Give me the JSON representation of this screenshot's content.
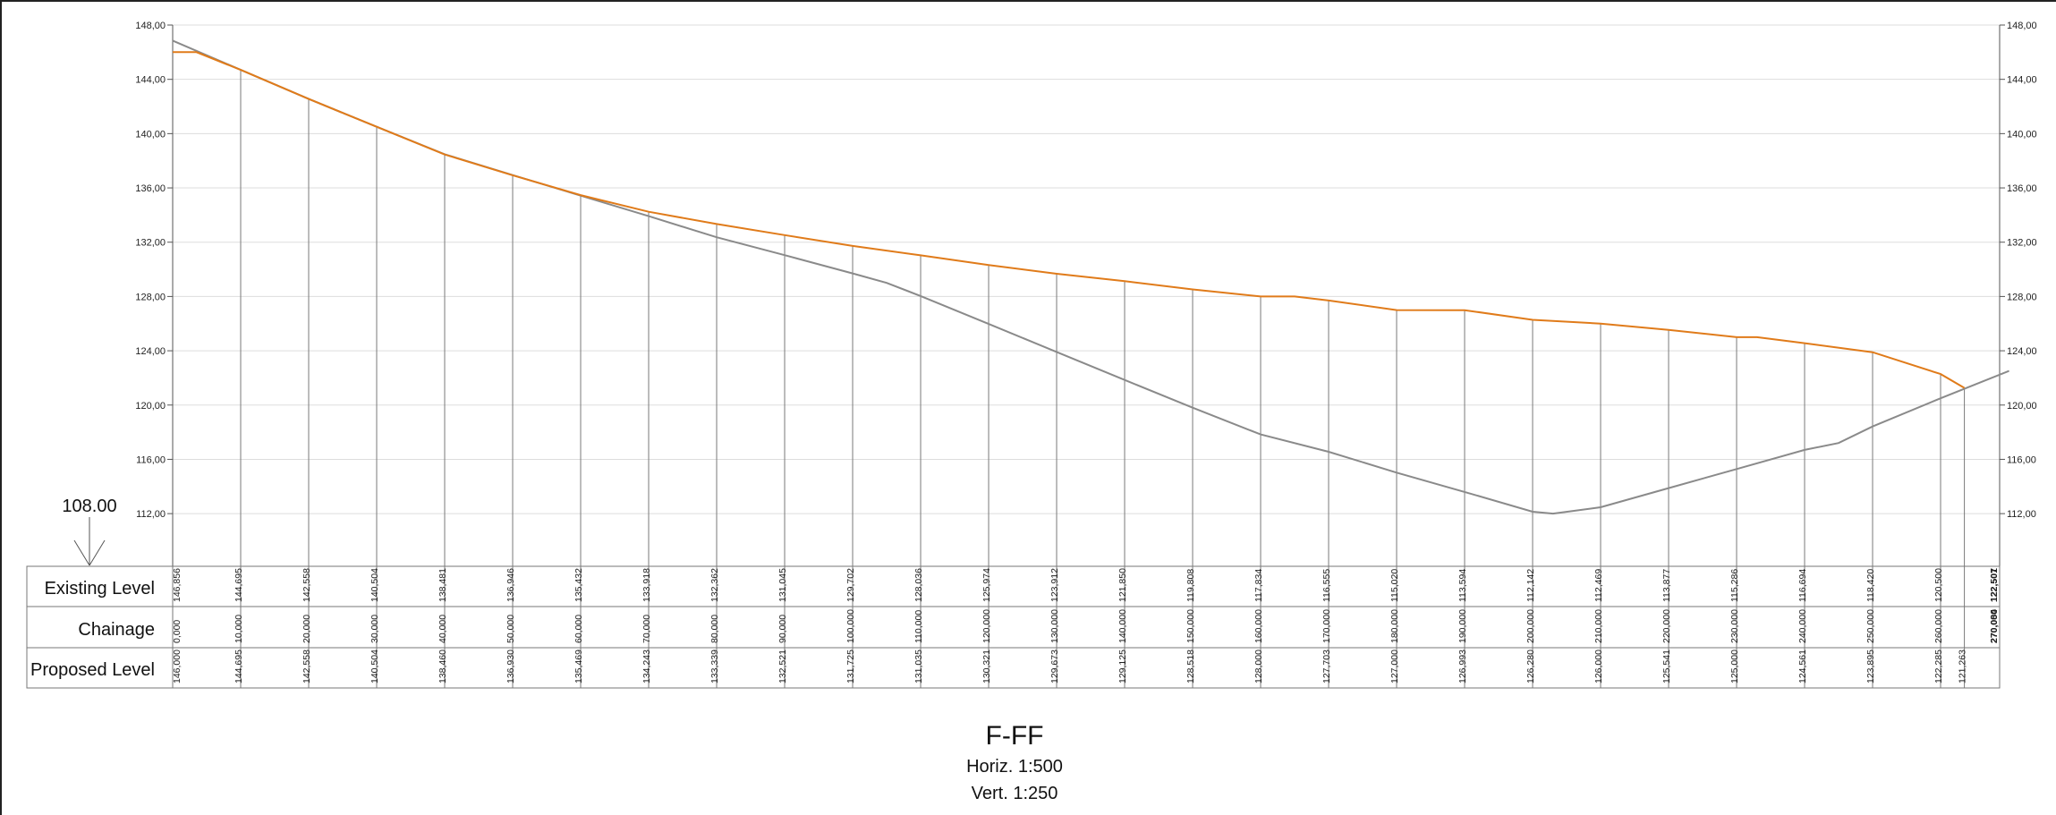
{
  "title": "F-FF",
  "scale_horizontal": "Horiz. 1:500",
  "scale_vertical": "Vert.  1:250",
  "datum_label": "108.00",
  "row_labels": {
    "existing": "Existing Level",
    "chainage": "Chainage",
    "proposed": "Proposed Level"
  },
  "colors": {
    "existing_line": "#8a8a8a",
    "proposed_line": "#e07b1a",
    "grid": "#dddddd",
    "station_line": "#7a7a7a"
  },
  "chart_data": {
    "type": "line",
    "title": "F-FF",
    "ylim": [
      108,
      148
    ],
    "y_ticks": [
      "112,00",
      "116,00",
      "120,00",
      "124,00",
      "128,00",
      "132,00",
      "136,00",
      "140,00",
      "144,00",
      "148,00"
    ],
    "grid": true,
    "chainage_labels": [
      "0,000",
      "10,000",
      "20,000",
      "30,000",
      "40,000",
      "50,000",
      "60,000",
      "70,000",
      "80,000",
      "90,000",
      "100,000",
      "110,000",
      "120,000",
      "130,000",
      "140,000",
      "150,000",
      "160,000",
      "170,000",
      "180,000",
      "190,000",
      "200,000",
      "210,000",
      "220,000",
      "230,000",
      "240,000",
      "250,000",
      "260,000",
      "270,000",
      "270,084"
    ],
    "existing_labels": [
      "146,856",
      "144,695",
      "142,558",
      "140,504",
      "138,481",
      "136,946",
      "135,432",
      "133,918",
      "132,362",
      "131,045",
      "129,702",
      "128,036",
      "125,974",
      "123,912",
      "121,850",
      "119,808",
      "117,834",
      "116,555",
      "115,020",
      "113,594",
      "112,142",
      "112,469",
      "113,877",
      "115,286",
      "116,694",
      "118,420",
      "120,500",
      "122,501",
      "122,507"
    ],
    "proposed_labels": [
      "146,000",
      "144,695",
      "142,558",
      "140,504",
      "138,460",
      "136,930",
      "135,469",
      "134,243",
      "133,339",
      "132,521",
      "131,725",
      "131,035",
      "130,321",
      "129,673",
      "129,125",
      "128,518",
      "128,000",
      "127,703",
      "127,000",
      "126,993",
      "126,280",
      "126,000",
      "125,541",
      "125,000",
      "124,561",
      "123,895",
      "122,285",
      "121,263"
    ],
    "existing": {
      "x": [
        0,
        10,
        20,
        30,
        40,
        50,
        60,
        70,
        80,
        90,
        100,
        105,
        110,
        120,
        130,
        140,
        150,
        160,
        170,
        180,
        190,
        200,
        203,
        210,
        220,
        230,
        240,
        245,
        250,
        260,
        270,
        270.084
      ],
      "y": [
        146.856,
        144.695,
        142.558,
        140.504,
        138.481,
        136.946,
        135.432,
        133.918,
        132.362,
        131.045,
        129.702,
        129,
        128.036,
        125.974,
        123.912,
        121.85,
        119.808,
        117.834,
        116.555,
        115.02,
        113.594,
        112.142,
        112.0,
        112.469,
        113.877,
        115.286,
        116.694,
        117.2,
        118.42,
        120.5,
        122.501,
        122.507
      ]
    },
    "proposed": {
      "x": [
        0,
        3.5,
        10,
        20,
        30,
        40,
        50,
        60,
        70,
        80,
        90,
        100,
        110,
        120,
        130,
        140,
        150,
        160,
        165,
        170,
        180,
        190,
        200,
        210,
        220,
        230,
        233,
        240,
        250,
        260,
        263.5
      ],
      "y": [
        146.0,
        146.0,
        144.695,
        142.558,
        140.504,
        138.46,
        136.93,
        135.469,
        134.243,
        133.339,
        132.521,
        131.725,
        131.035,
        130.321,
        129.673,
        129.125,
        128.518,
        128.0,
        128.0,
        127.703,
        127.0,
        126.993,
        126.28,
        126.0,
        125.541,
        125.0,
        125.0,
        124.561,
        123.895,
        122.285,
        121.263
      ]
    }
  }
}
